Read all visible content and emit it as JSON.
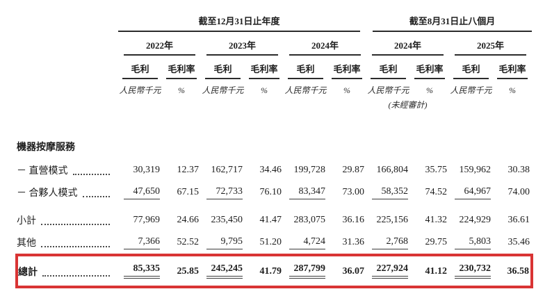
{
  "table": {
    "group_headers": [
      {
        "label": "截至12月31日止年度"
      },
      {
        "label": "截至8月31日止八個月"
      }
    ],
    "year_headers": [
      "2022年",
      "2023年",
      "2024年",
      "2024年",
      "2025年"
    ],
    "measure_headers": {
      "profit": "毛利",
      "margin": "毛利率"
    },
    "unit_headers": {
      "amount": "人民幣千元",
      "percent": "%"
    },
    "unaudited_note": "(未經審計)",
    "section_header": "機器按摩服務",
    "rows": [
      {
        "label": "－ 直營模式",
        "values": [
          "30,319",
          "12.37",
          "162,717",
          "34.46",
          "199,728",
          "29.87",
          "166,804",
          "35.75",
          "159,962",
          "30.38"
        ]
      },
      {
        "label": "－ 合夥人模式",
        "values": [
          "47,650",
          "67.15",
          "72,733",
          "76.10",
          "83,347",
          "73.00",
          "58,352",
          "74.52",
          "64,967",
          "74.00"
        ]
      },
      {
        "label": "小計",
        "values": [
          "77,969",
          "24.66",
          "235,450",
          "41.47",
          "283,075",
          "36.16",
          "225,156",
          "41.32",
          "224,929",
          "36.61"
        ]
      },
      {
        "label": "其他",
        "values": [
          "7,366",
          "52.52",
          "9,795",
          "51.20",
          "4,724",
          "31.36",
          "2,768",
          "29.75",
          "5,803",
          "35.46"
        ]
      },
      {
        "label": "總計",
        "values": [
          "85,335",
          "25.85",
          "245,245",
          "41.79",
          "287,799",
          "36.07",
          "227,924",
          "41.12",
          "230,732",
          "36.58"
        ]
      }
    ],
    "highlight_color": "#d93434"
  }
}
